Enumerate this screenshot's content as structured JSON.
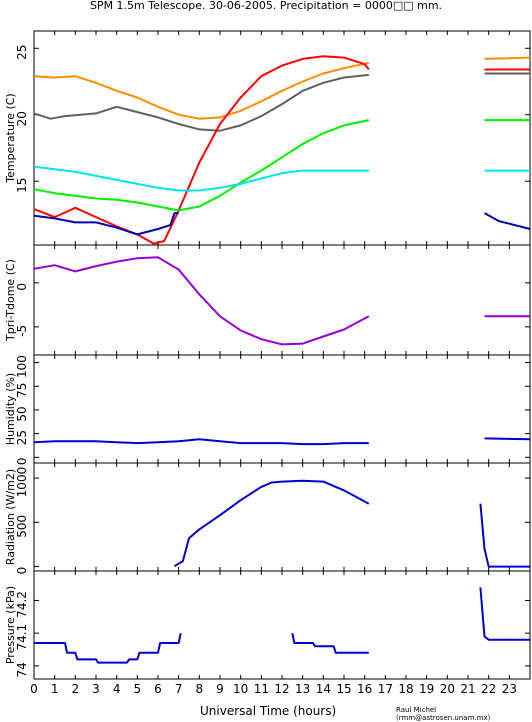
{
  "title": "SPM 1.5m Telescope. 30-06-2005. Precipitation = 0000□□ mm.",
  "xlabel": "Universal Time (hours)",
  "credit": "Raul Michel (rmm@astrosen.unam.mx)",
  "chart_data": [
    {
      "type": "line",
      "ylabel": "Temperature (C)",
      "xlim": [
        0,
        24
      ],
      "ylim": [
        10.2,
        26.3
      ],
      "yticks": [
        15,
        20,
        25
      ],
      "xticks": [
        0,
        1,
        2,
        3,
        4,
        5,
        6,
        7,
        8,
        9,
        10,
        11,
        12,
        13,
        14,
        15,
        16,
        17,
        18,
        19,
        20,
        21,
        22,
        23
      ],
      "series": [
        {
          "color": "#ff8c00",
          "points": [
            [
              0,
              22.9
            ],
            [
              1,
              22.8
            ],
            [
              2,
              22.9
            ],
            [
              3,
              22.4
            ],
            [
              4,
              21.8
            ],
            [
              5,
              21.3
            ],
            [
              6,
              20.6
            ],
            [
              7,
              20.0
            ],
            [
              8,
              19.7
            ],
            [
              9,
              19.8
            ],
            [
              10,
              20.3
            ],
            [
              11,
              21.0
            ],
            [
              12,
              21.8
            ],
            [
              13,
              22.5
            ],
            [
              14,
              23.1
            ],
            [
              15,
              23.5
            ],
            [
              16.2,
              23.9
            ],
            [
              21.8,
              24.2
            ],
            [
              24,
              24.3
            ]
          ]
        },
        {
          "color": "#606060",
          "points": [
            [
              0,
              20.1
            ],
            [
              0.8,
              19.7
            ],
            [
              1.5,
              19.9
            ],
            [
              3,
              20.1
            ],
            [
              4,
              20.6
            ],
            [
              5,
              20.2
            ],
            [
              6,
              19.8
            ],
            [
              7,
              19.3
            ],
            [
              8,
              18.9
            ],
            [
              9,
              18.8
            ],
            [
              10,
              19.2
            ],
            [
              11,
              19.9
            ],
            [
              12,
              20.8
            ],
            [
              13,
              21.8
            ],
            [
              14,
              22.4
            ],
            [
              15,
              22.8
            ],
            [
              16.2,
              23.0
            ],
            [
              21.8,
              23.1
            ],
            [
              24,
              23.1
            ]
          ]
        },
        {
          "color": "#ff0000",
          "points": [
            [
              0,
              12.9
            ],
            [
              1,
              12.3
            ],
            [
              2,
              13.0
            ],
            [
              3,
              12.3
            ],
            [
              4,
              11.6
            ],
            [
              5,
              11.0
            ],
            [
              5.8,
              10.3
            ],
            [
              6.3,
              10.5
            ],
            [
              7,
              12.8
            ],
            [
              8,
              16.4
            ],
            [
              9,
              19.3
            ],
            [
              10,
              21.3
            ],
            [
              11,
              22.9
            ],
            [
              12,
              23.7
            ],
            [
              13,
              24.2
            ],
            [
              14,
              24.4
            ],
            [
              15,
              24.3
            ],
            [
              16,
              23.8
            ],
            [
              16.2,
              23.4
            ],
            [
              21.8,
              23.4
            ],
            [
              24,
              23.4
            ]
          ]
        },
        {
          "color": "#00ee00",
          "points": [
            [
              0,
              14.4
            ],
            [
              1,
              14.1
            ],
            [
              2,
              13.9
            ],
            [
              3,
              13.7
            ],
            [
              4,
              13.6
            ],
            [
              5,
              13.4
            ],
            [
              6,
              13.1
            ],
            [
              7,
              12.8
            ],
            [
              8,
              13.1
            ],
            [
              9,
              13.9
            ],
            [
              10,
              14.9
            ],
            [
              11,
              15.8
            ],
            [
              12,
              16.8
            ],
            [
              13,
              17.8
            ],
            [
              14,
              18.6
            ],
            [
              15,
              19.2
            ],
            [
              16.2,
              19.6
            ],
            [
              21.8,
              19.6
            ],
            [
              24,
              19.6
            ]
          ]
        },
        {
          "color": "#00e5e5",
          "points": [
            [
              0,
              16.1
            ],
            [
              1,
              15.9
            ],
            [
              2,
              15.7
            ],
            [
              3,
              15.4
            ],
            [
              4,
              15.1
            ],
            [
              5,
              14.8
            ],
            [
              6,
              14.5
            ],
            [
              7,
              14.3
            ],
            [
              8,
              14.3
            ],
            [
              9,
              14.5
            ],
            [
              10,
              14.8
            ],
            [
              11,
              15.2
            ],
            [
              12,
              15.6
            ],
            [
              12.9,
              15.8
            ],
            [
              16.2,
              15.8
            ],
            [
              21.8,
              15.8
            ],
            [
              24,
              15.8
            ]
          ]
        },
        {
          "color": "#0000b0",
          "points": [
            [
              0,
              12.4
            ],
            [
              1,
              12.2
            ],
            [
              2,
              11.9
            ],
            [
              3,
              11.9
            ],
            [
              4,
              11.5
            ],
            [
              5,
              11.0
            ],
            [
              6,
              11.4
            ],
            [
              6.6,
              11.7
            ],
            [
              6.8,
              12.6
            ],
            [
              7,
              12.6
            ],
            [
              16.2,
              12.6
            ],
            [
              21.8,
              12.6
            ],
            [
              22.5,
              12.0
            ],
            [
              23,
              11.8
            ],
            [
              24,
              11.4
            ]
          ]
        }
      ]
    },
    {
      "type": "line",
      "ylabel": "Tpri-Tdome (C)",
      "xlim": [
        0,
        24
      ],
      "ylim": [
        -8.2,
        4.3
      ],
      "yticks": [
        -5,
        0
      ],
      "series": [
        {
          "color": "#9400d3",
          "points": [
            [
              0,
              1.6
            ],
            [
              1,
              2.0
            ],
            [
              2,
              1.3
            ],
            [
              3,
              1.9
            ],
            [
              4,
              2.4
            ],
            [
              5,
              2.8
            ],
            [
              6,
              2.9
            ],
            [
              7,
              1.5
            ],
            [
              8,
              -1.3
            ],
            [
              9,
              -3.8
            ],
            [
              10,
              -5.4
            ],
            [
              11,
              -6.4
            ],
            [
              12,
              -7.0
            ],
            [
              13,
              -6.9
            ],
            [
              14,
              -6.1
            ],
            [
              15,
              -5.3
            ],
            [
              16.2,
              -3.8
            ],
            [
              21.8,
              -3.8
            ],
            [
              24,
              -3.8
            ]
          ]
        }
      ]
    },
    {
      "type": "line",
      "ylabel": "Humidity (%)",
      "xlim": [
        0,
        24
      ],
      "ylim": [
        -6,
        108
      ],
      "yticks": [
        0,
        25,
        50,
        75,
        100
      ],
      "series": [
        {
          "color": "#0000cc",
          "points": [
            [
              0,
              16
            ],
            [
              1,
              17
            ],
            [
              2,
              17
            ],
            [
              3,
              17
            ],
            [
              4,
              16
            ],
            [
              5,
              15
            ],
            [
              6,
              16
            ],
            [
              7,
              17
            ],
            [
              8,
              19
            ],
            [
              9,
              17
            ],
            [
              10,
              15
            ],
            [
              11,
              15
            ],
            [
              12,
              15
            ],
            [
              13,
              14
            ],
            [
              14,
              14
            ],
            [
              15,
              15
            ],
            [
              16.2,
              15
            ],
            [
              21.8,
              20
            ],
            [
              24,
              19
            ]
          ]
        }
      ]
    },
    {
      "type": "line",
      "ylabel": "Radiation (W/m2)",
      "xlim": [
        0,
        24
      ],
      "ylim": [
        -50,
        1170
      ],
      "yticks": [
        0,
        500,
        1000
      ],
      "series": [
        {
          "color": "#0000cc",
          "points": [
            [
              0,
              0
            ],
            [
              6.8,
              5
            ],
            [
              7.2,
              60
            ],
            [
              7.5,
              320
            ],
            [
              8,
              420
            ],
            [
              9,
              580
            ],
            [
              10,
              750
            ],
            [
              11,
              900
            ],
            [
              11.5,
              950
            ],
            [
              12,
              960
            ],
            [
              13,
              970
            ],
            [
              14,
              960
            ],
            [
              15,
              860
            ],
            [
              16.2,
              710
            ],
            [
              21.6,
              710
            ],
            [
              21.8,
              200
            ],
            [
              22,
              0
            ],
            [
              24,
              0
            ]
          ]
        }
      ]
    },
    {
      "type": "line",
      "ylabel": "Pressure (kPa)",
      "xlim": [
        0,
        24
      ],
      "ylim": [
        73.96,
        74.29
      ],
      "yticks": [
        74,
        74.1,
        74.2
      ],
      "series": [
        {
          "color": "#0000cc",
          "points": [
            [
              0,
              74.07
            ],
            [
              1.5,
              74.07
            ],
            [
              1.6,
              74.04
            ],
            [
              2,
              74.04
            ],
            [
              2.1,
              74.02
            ],
            [
              3,
              74.02
            ],
            [
              3.1,
              74.01
            ],
            [
              4.5,
              74.01
            ],
            [
              4.6,
              74.02
            ],
            [
              5,
              74.02
            ],
            [
              5.1,
              74.04
            ],
            [
              6,
              74.04
            ],
            [
              6.1,
              74.07
            ],
            [
              7,
              74.07
            ],
            [
              7.1,
              74.1
            ],
            [
              12.5,
              74.1
            ],
            [
              12.6,
              74.07
            ],
            [
              13.5,
              74.07
            ],
            [
              13.6,
              74.06
            ],
            [
              14.5,
              74.06
            ],
            [
              14.6,
              74.04
            ],
            [
              16.2,
              74.04
            ],
            [
              21.6,
              74.24
            ],
            [
              21.8,
              74.09
            ],
            [
              22,
              74.08
            ],
            [
              24,
              74.08
            ]
          ]
        }
      ]
    }
  ]
}
